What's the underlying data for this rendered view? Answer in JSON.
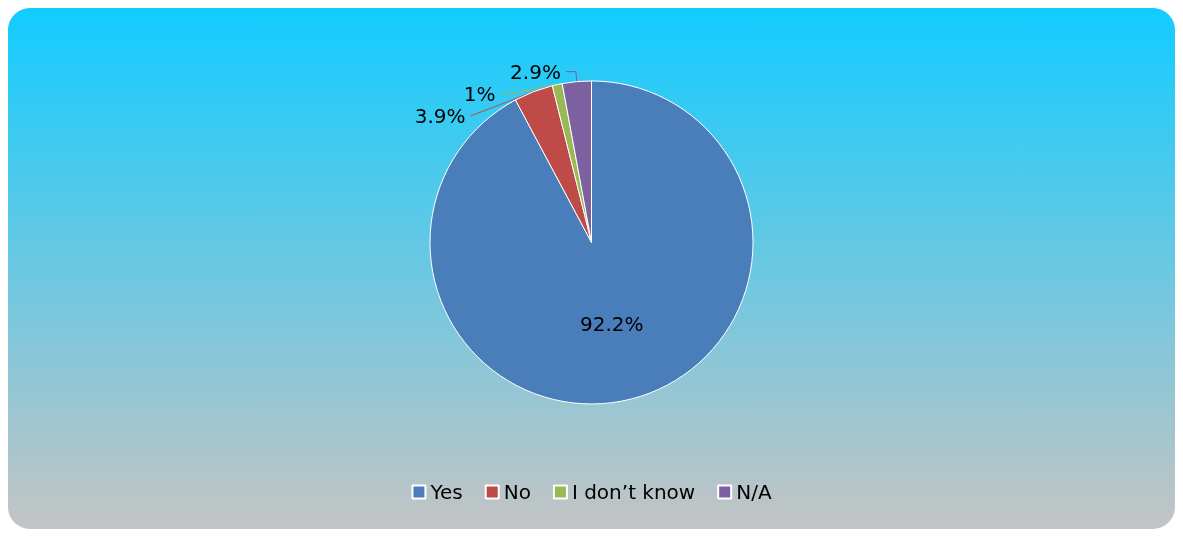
{
  "chart_data": {
    "type": "pie",
    "categories": [
      "Yes",
      "No",
      "I don’t know",
      "N/A"
    ],
    "values": [
      92.2,
      3.9,
      1,
      2.9
    ],
    "colors": [
      "#4a7ebb",
      "#be4b48",
      "#98b954",
      "#7d60a0"
    ],
    "value_labels": [
      "92.2%",
      "3.9%",
      "1%",
      "2.9%"
    ],
    "legend": "bottom"
  }
}
